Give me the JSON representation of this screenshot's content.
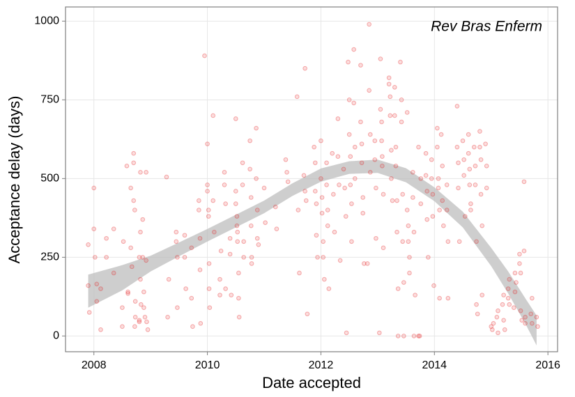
{
  "chart_data": {
    "type": "scatter",
    "annotation": "Rev Bras Enferm",
    "x_label": "Date accepted",
    "y_label": "Acceptance delay (days)",
    "xlim": [
      2007.5,
      2016.17
    ],
    "ylim": [
      -50,
      1045
    ],
    "xticks": [
      2008,
      2010,
      2012,
      2014,
      2016
    ],
    "yticks": [
      0,
      250,
      500,
      750,
      1000
    ],
    "grid": true,
    "color": "#e41a1c",
    "ribbon_color": "#bebebe",
    "points": [
      [
        2007.9,
        290
      ],
      [
        2007.9,
        160
      ],
      [
        2007.92,
        75
      ],
      [
        2008.0,
        470
      ],
      [
        2008.0,
        340
      ],
      [
        2008.02,
        250
      ],
      [
        2008.05,
        110
      ],
      [
        2008.05,
        165
      ],
      [
        2008.12,
        150
      ],
      [
        2008.12,
        20
      ],
      [
        2008.22,
        310
      ],
      [
        2008.22,
        250
      ],
      [
        2008.35,
        340
      ],
      [
        2008.35,
        200
      ],
      [
        2008.5,
        90
      ],
      [
        2008.5,
        30
      ],
      [
        2008.52,
        300
      ],
      [
        2008.6,
        140
      ],
      [
        2008.6,
        135
      ],
      [
        2008.58,
        540
      ],
      [
        2008.65,
        470
      ],
      [
        2008.65,
        280
      ],
      [
        2008.67,
        220
      ],
      [
        2008.7,
        580
      ],
      [
        2008.7,
        550
      ],
      [
        2008.7,
        430
      ],
      [
        2008.72,
        400
      ],
      [
        2008.72,
        30
      ],
      [
        2008.73,
        60
      ],
      [
        2008.73,
        110
      ],
      [
        2008.8,
        50
      ],
      [
        2008.8,
        45
      ],
      [
        2008.8,
        250
      ],
      [
        2008.82,
        330
      ],
      [
        2008.82,
        520
      ],
      [
        2008.82,
        180
      ],
      [
        2008.83,
        100
      ],
      [
        2008.86,
        370
      ],
      [
        2008.86,
        250
      ],
      [
        2008.88,
        140
      ],
      [
        2008.88,
        90
      ],
      [
        2008.9,
        60
      ],
      [
        2008.92,
        520
      ],
      [
        2008.92,
        240
      ],
      [
        2008.93,
        45
      ],
      [
        2008.95,
        20
      ],
      [
        2009.3,
        60
      ],
      [
        2009.32,
        180
      ],
      [
        2009.28,
        505
      ],
      [
        2009.45,
        300
      ],
      [
        2009.45,
        330
      ],
      [
        2009.47,
        250
      ],
      [
        2009.47,
        90
      ],
      [
        2009.6,
        320
      ],
      [
        2009.6,
        250
      ],
      [
        2009.62,
        150
      ],
      [
        2009.72,
        280
      ],
      [
        2009.72,
        120
      ],
      [
        2009.74,
        30
      ],
      [
        2009.85,
        430
      ],
      [
        2009.85,
        400
      ],
      [
        2009.87,
        310
      ],
      [
        2009.87,
        210
      ],
      [
        2009.88,
        40
      ],
      [
        2009.95,
        890
      ],
      [
        2010.0,
        610
      ],
      [
        2010.0,
        480
      ],
      [
        2010.0,
        460
      ],
      [
        2010.02,
        400
      ],
      [
        2010.02,
        380
      ],
      [
        2010.03,
        230
      ],
      [
        2010.03,
        150
      ],
      [
        2010.04,
        90
      ],
      [
        2010.1,
        700
      ],
      [
        2010.1,
        430
      ],
      [
        2010.12,
        330
      ],
      [
        2010.22,
        180
      ],
      [
        2010.22,
        130
      ],
      [
        2010.24,
        270
      ],
      [
        2010.3,
        520
      ],
      [
        2010.3,
        480
      ],
      [
        2010.32,
        420
      ],
      [
        2010.32,
        150
      ],
      [
        2010.4,
        310
      ],
      [
        2010.4,
        260
      ],
      [
        2010.42,
        130
      ],
      [
        2010.5,
        690
      ],
      [
        2010.5,
        460
      ],
      [
        2010.5,
        420
      ],
      [
        2010.52,
        380
      ],
      [
        2010.52,
        350
      ],
      [
        2010.53,
        330
      ],
      [
        2010.53,
        300
      ],
      [
        2010.55,
        200
      ],
      [
        2010.55,
        120
      ],
      [
        2010.56,
        60
      ],
      [
        2010.62,
        550
      ],
      [
        2010.62,
        480
      ],
      [
        2010.64,
        300
      ],
      [
        2010.64,
        250
      ],
      [
        2010.75,
        620
      ],
      [
        2010.75,
        530
      ],
      [
        2010.77,
        440
      ],
      [
        2010.77,
        350
      ],
      [
        2010.78,
        250
      ],
      [
        2010.78,
        230
      ],
      [
        2010.86,
        660
      ],
      [
        2010.86,
        500
      ],
      [
        2010.88,
        400
      ],
      [
        2010.88,
        310
      ],
      [
        2010.9,
        290
      ],
      [
        2011.0,
        470
      ],
      [
        2011.02,
        360
      ],
      [
        2011.2,
        410
      ],
      [
        2011.22,
        340
      ],
      [
        2011.38,
        560
      ],
      [
        2011.4,
        520
      ],
      [
        2011.42,
        490
      ],
      [
        2011.58,
        760
      ],
      [
        2011.6,
        400
      ],
      [
        2011.62,
        200
      ],
      [
        2011.72,
        850
      ],
      [
        2011.7,
        510
      ],
      [
        2011.72,
        460
      ],
      [
        2011.74,
        430
      ],
      [
        2011.76,
        70
      ],
      [
        2011.88,
        600
      ],
      [
        2011.9,
        550
      ],
      [
        2011.9,
        460
      ],
      [
        2011.92,
        420
      ],
      [
        2011.92,
        320
      ],
      [
        2011.94,
        250
      ],
      [
        2012.0,
        620
      ],
      [
        2012.0,
        500
      ],
      [
        2012.02,
        440
      ],
      [
        2012.02,
        390
      ],
      [
        2012.04,
        300
      ],
      [
        2012.04,
        250
      ],
      [
        2012.06,
        180
      ],
      [
        2012.1,
        550
      ],
      [
        2012.1,
        480
      ],
      [
        2012.12,
        400
      ],
      [
        2012.12,
        350
      ],
      [
        2012.14,
        150
      ],
      [
        2012.2,
        580
      ],
      [
        2012.22,
        450
      ],
      [
        2012.24,
        330
      ],
      [
        2012.3,
        690
      ],
      [
        2012.3,
        570
      ],
      [
        2012.32,
        480
      ],
      [
        2012.34,
        240
      ],
      [
        2012.4,
        530
      ],
      [
        2012.42,
        470
      ],
      [
        2012.44,
        380
      ],
      [
        2012.48,
        870
      ],
      [
        2012.5,
        750
      ],
      [
        2012.5,
        640
      ],
      [
        2012.52,
        570
      ],
      [
        2012.52,
        480
      ],
      [
        2012.54,
        420
      ],
      [
        2012.54,
        300
      ],
      [
        2012.45,
        10
      ],
      [
        2012.58,
        910
      ],
      [
        2012.58,
        740
      ],
      [
        2012.6,
        600
      ],
      [
        2012.6,
        500
      ],
      [
        2012.7,
        860
      ],
      [
        2012.7,
        680
      ],
      [
        2012.72,
        610
      ],
      [
        2012.72,
        550
      ],
      [
        2012.74,
        440
      ],
      [
        2012.74,
        390
      ],
      [
        2012.76,
        230
      ],
      [
        2012.85,
        990
      ],
      [
        2012.85,
        780
      ],
      [
        2012.87,
        640
      ],
      [
        2012.87,
        520
      ],
      [
        2012.82,
        230
      ],
      [
        2012.95,
        620
      ],
      [
        2012.95,
        560
      ],
      [
        2012.97,
        470
      ],
      [
        2012.97,
        310
      ],
      [
        2013.05,
        880
      ],
      [
        2013.05,
        720
      ],
      [
        2013.07,
        680
      ],
      [
        2013.07,
        620
      ],
      [
        2013.08,
        570
      ],
      [
        2013.08,
        540
      ],
      [
        2013.1,
        450
      ],
      [
        2013.1,
        280
      ],
      [
        2013.03,
        10
      ],
      [
        2013.2,
        820
      ],
      [
        2013.2,
        800
      ],
      [
        2013.22,
        760
      ],
      [
        2013.22,
        700
      ],
      [
        2013.24,
        590
      ],
      [
        2013.24,
        500
      ],
      [
        2013.26,
        430
      ],
      [
        2013.3,
        790
      ],
      [
        2013.3,
        700
      ],
      [
        2013.32,
        600
      ],
      [
        2013.32,
        540
      ],
      [
        2013.34,
        430
      ],
      [
        2013.34,
        330
      ],
      [
        2013.36,
        150
      ],
      [
        2013.36,
        0
      ],
      [
        2013.4,
        870
      ],
      [
        2013.42,
        750
      ],
      [
        2013.42,
        680
      ],
      [
        2013.44,
        450
      ],
      [
        2013.44,
        300
      ],
      [
        2013.46,
        170
      ],
      [
        2013.46,
        0
      ],
      [
        2013.52,
        710
      ],
      [
        2013.52,
        400
      ],
      [
        2013.54,
        350
      ],
      [
        2013.54,
        300
      ],
      [
        2013.56,
        250
      ],
      [
        2013.56,
        200
      ],
      [
        2013.62,
        520
      ],
      [
        2013.62,
        440
      ],
      [
        2013.64,
        330
      ],
      [
        2013.64,
        0
      ],
      [
        2013.66,
        130
      ],
      [
        2013.72,
        0
      ],
      [
        2013.74,
        0
      ],
      [
        2013.72,
        600
      ],
      [
        2013.76,
        500
      ],
      [
        2013.76,
        420
      ],
      [
        2013.85,
        580
      ],
      [
        2013.85,
        510
      ],
      [
        2013.87,
        460
      ],
      [
        2013.87,
        370
      ],
      [
        2013.89,
        250
      ],
      [
        2013.95,
        560
      ],
      [
        2013.95,
        500
      ],
      [
        2013.97,
        450
      ],
      [
        2013.97,
        380
      ],
      [
        2013.99,
        160
      ],
      [
        2014.05,
        660
      ],
      [
        2014.05,
        600
      ],
      [
        2014.07,
        500
      ],
      [
        2014.07,
        470
      ],
      [
        2014.09,
        400
      ],
      [
        2014.09,
        120
      ],
      [
        2014.12,
        640
      ],
      [
        2014.14,
        540
      ],
      [
        2014.14,
        430
      ],
      [
        2014.16,
        350
      ],
      [
        2014.22,
        480
      ],
      [
        2014.22,
        400
      ],
      [
        2014.24,
        300
      ],
      [
        2014.24,
        120
      ],
      [
        2014.4,
        730
      ],
      [
        2014.4,
        600
      ],
      [
        2014.42,
        550
      ],
      [
        2014.42,
        470
      ],
      [
        2014.44,
        300
      ],
      [
        2014.5,
        620
      ],
      [
        2014.52,
        560
      ],
      [
        2014.52,
        510
      ],
      [
        2014.54,
        380
      ],
      [
        2014.6,
        640
      ],
      [
        2014.6,
        580
      ],
      [
        2014.62,
        530
      ],
      [
        2014.62,
        480
      ],
      [
        2014.64,
        400
      ],
      [
        2014.64,
        420
      ],
      [
        2014.7,
        600
      ],
      [
        2014.72,
        540
      ],
      [
        2014.72,
        480
      ],
      [
        2014.74,
        300
      ],
      [
        2014.74,
        100
      ],
      [
        2014.76,
        70
      ],
      [
        2014.8,
        650
      ],
      [
        2014.8,
        600
      ],
      [
        2014.82,
        560
      ],
      [
        2014.82,
        450
      ],
      [
        2014.84,
        350
      ],
      [
        2014.84,
        130
      ],
      [
        2014.9,
        610
      ],
      [
        2014.92,
        540
      ],
      [
        2014.92,
        470
      ],
      [
        2015.0,
        30
      ],
      [
        2015.02,
        20
      ],
      [
        2015.04,
        40
      ],
      [
        2015.1,
        60
      ],
      [
        2015.12,
        80
      ],
      [
        2015.12,
        10
      ],
      [
        2015.2,
        100
      ],
      [
        2015.22,
        130
      ],
      [
        2015.22,
        50
      ],
      [
        2015.24,
        20
      ],
      [
        2015.3,
        150
      ],
      [
        2015.3,
        120
      ],
      [
        2015.32,
        180
      ],
      [
        2015.32,
        100
      ],
      [
        2015.4,
        90
      ],
      [
        2015.42,
        140
      ],
      [
        2015.42,
        200
      ],
      [
        2015.44,
        170
      ],
      [
        2015.5,
        260
      ],
      [
        2015.5,
        230
      ],
      [
        2015.52,
        200
      ],
      [
        2015.52,
        80
      ],
      [
        2015.54,
        50
      ],
      [
        2015.58,
        490
      ],
      [
        2015.58,
        270
      ],
      [
        2015.6,
        60
      ],
      [
        2015.6,
        40
      ],
      [
        2015.7,
        70
      ],
      [
        2015.72,
        120
      ],
      [
        2015.72,
        40
      ],
      [
        2015.8,
        60
      ],
      [
        2015.82,
        30
      ]
    ],
    "ribbon": {
      "x": [
        2007.9,
        2008.5,
        2009,
        2009.5,
        2010,
        2010.5,
        2011,
        2011.5,
        2012,
        2012.5,
        2013,
        2013.5,
        2014,
        2014.5,
        2015,
        2015.3,
        2015.6,
        2015.8
      ],
      "upper": [
        195,
        225,
        255,
        297,
        340,
        385,
        430,
        485,
        532,
        555,
        560,
        533,
        472,
        395,
        280,
        205,
        120,
        65
      ],
      "lower": [
        90,
        145,
        205,
        253,
        300,
        345,
        390,
        445,
        490,
        515,
        518,
        488,
        428,
        345,
        222,
        135,
        40,
        -30
      ]
    }
  }
}
